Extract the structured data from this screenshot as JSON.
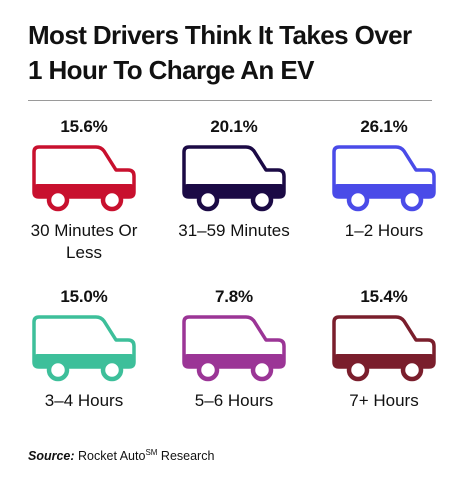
{
  "title_line1": "Most Drivers Think It Takes Over",
  "title_line2": "1 Hour To Charge An EV",
  "source": {
    "prefix": "Source:",
    "brand": "Rocket Auto",
    "superscript": "SM",
    "suffix": " Research"
  },
  "chart_data": {
    "type": "pictograph",
    "title": "Most Drivers Think It Takes Over 1 Hour To Charge An EV",
    "unit": "%",
    "categories": [
      "30 Minutes Or Less",
      "31–59 Minutes",
      "1–2 Hours",
      "3–4 Hours",
      "5–6 Hours",
      "7+ Hours"
    ],
    "values": [
      15.6,
      20.1,
      26.1,
      15.0,
      7.8,
      15.4
    ],
    "items": [
      {
        "category": "30 Minutes Or Less",
        "value": 15.6,
        "value_label": "15.6%",
        "color": "#c8102e"
      },
      {
        "category": "31–59 Minutes",
        "value": 20.1,
        "value_label": "20.1%",
        "color": "#1b0a45"
      },
      {
        "category": "1–2 Hours",
        "value": 26.1,
        "value_label": "26.1%",
        "color": "#4a4be8"
      },
      {
        "category": "3–4 Hours",
        "value": 15.0,
        "value_label": "15.0%",
        "color": "#3dbf9a"
      },
      {
        "category": "5–6 Hours",
        "value": 7.8,
        "value_label": "7.8%",
        "color": "#9b3596"
      },
      {
        "category": "7+ Hours",
        "value": 15.4,
        "value_label": "15.4%",
        "color": "#7a1e2c"
      }
    ]
  }
}
